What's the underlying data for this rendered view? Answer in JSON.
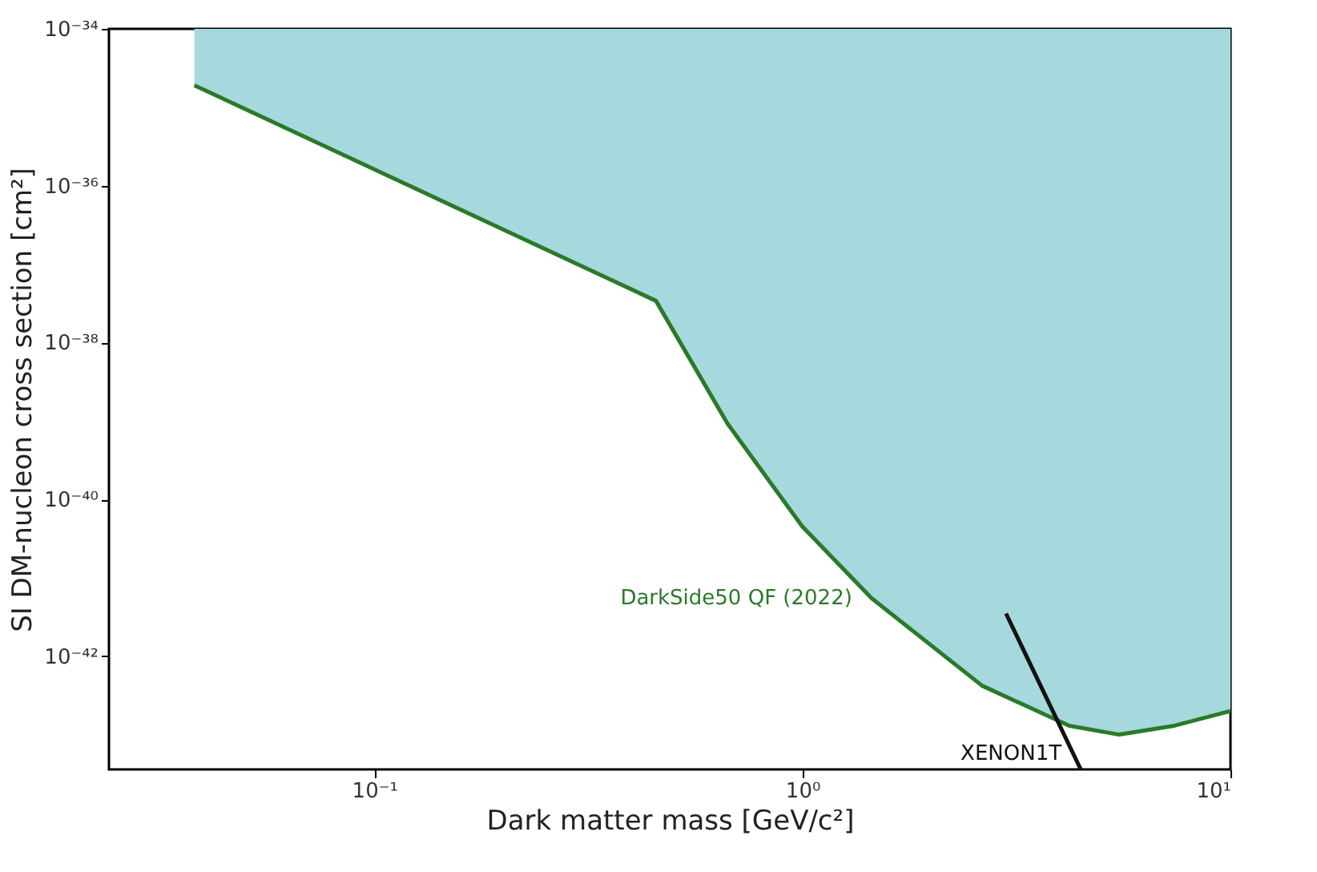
{
  "chart_data": {
    "type": "line",
    "xlabel": "Dark matter mass [GeV/c²]",
    "ylabel": "SI DM-nucleon cross section [cm²]",
    "log": "xy",
    "xlim": [
      0.024,
      10
    ],
    "ylim": [
      3.6e-44,
      1e-34
    ],
    "xticks": [
      {
        "value": 0.1,
        "label": "10⁻¹"
      },
      {
        "value": 1,
        "label": "10⁰"
      },
      {
        "value": 10,
        "label": "10¹"
      }
    ],
    "yticks": [
      {
        "value": 1e-42,
        "label": "10⁻⁴²"
      },
      {
        "value": 1e-40,
        "label": "10⁻⁴⁰"
      },
      {
        "value": 1e-38,
        "label": "10⁻³⁸"
      },
      {
        "value": 1e-36,
        "label": "10⁻³⁶"
      },
      {
        "value": 1e-34,
        "label": "10⁻³⁴"
      }
    ],
    "grid": false,
    "series": [
      {
        "name": "DarkSide50 QF (2022)",
        "color": "#2a7a2a",
        "x": [
          0.038,
          0.455,
          0.668,
          1.0,
          1.45,
          2.63,
          4.2,
          5.5,
          7.4,
          10
        ],
        "values": [
          1.9e-35,
          3.4e-38,
          9.3e-40,
          4.5e-41,
          5.5e-42,
          4.2e-43,
          1.3e-43,
          1e-43,
          1.3e-43,
          2e-43
        ],
        "lower": [
          1.9e-35,
          3.4e-38,
          9.3e-40,
          4.5e-41,
          5.5e-42,
          4.2e-43,
          1.3e-43,
          1e-43,
          1.3e-43,
          2e-43
        ],
        "upper": [
          1e-34,
          1e-34,
          1e-34,
          1e-34,
          1e-34,
          1e-34,
          1e-34,
          1e-34,
          1e-34,
          1e-34
        ]
      },
      {
        "name": "XENON1T",
        "color": "#111111",
        "x": [
          2.99,
          4.47
        ],
        "values": [
          3.5e-42,
          3.6e-44
        ]
      }
    ]
  }
}
